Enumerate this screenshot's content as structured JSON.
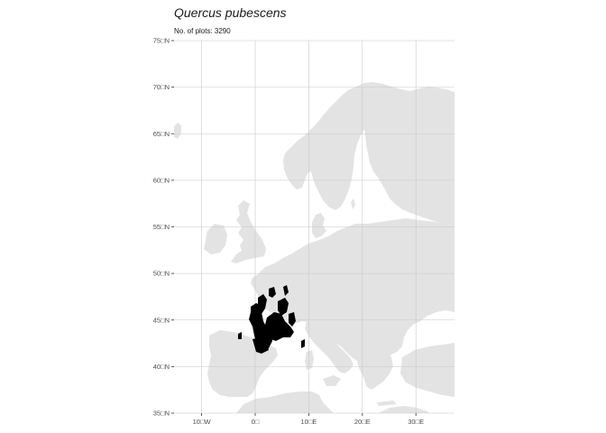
{
  "title": "Quercus pubescens",
  "subtitle": "No. of plots: 3290",
  "map": {
    "projection": "plate-carree",
    "lon_range": [
      -15,
      37
    ],
    "lat_range": [
      35,
      75
    ],
    "lon_ticks": [
      {
        "value": -10,
        "label": "10□W"
      },
      {
        "value": 0,
        "label": "0□"
      },
      {
        "value": 10,
        "label": "10□E"
      },
      {
        "value": 20,
        "label": "20□E"
      },
      {
        "value": 30,
        "label": "30□E"
      }
    ],
    "lat_ticks": [
      {
        "value": 35,
        "label": "35□N"
      },
      {
        "value": 40,
        "label": "40□N"
      },
      {
        "value": 45,
        "label": "45□N"
      },
      {
        "value": 50,
        "label": "50□N"
      },
      {
        "value": 55,
        "label": "55□N"
      },
      {
        "value": 60,
        "label": "60□N"
      },
      {
        "value": 65,
        "label": "65□N"
      },
      {
        "value": 70,
        "label": "70□N"
      },
      {
        "value": 75,
        "label": "75□N"
      }
    ],
    "land_color": "#e3e3e3",
    "grid_color": "#c8c8c8",
    "occurrence_color": "#000000",
    "grid": true,
    "layers": [
      "land",
      "graticule",
      "occurrence-plots"
    ]
  }
}
